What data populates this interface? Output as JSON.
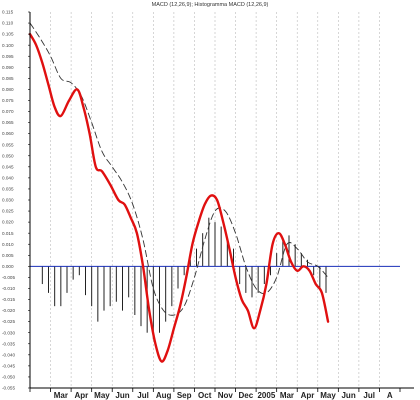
{
  "chart_data": {
    "type": "line",
    "title": "MACD (12,26,9); Histogramma MACD (12,26,9)",
    "x_axis": {
      "ticks": [
        "Mar",
        "Apr",
        "May",
        "Jun",
        "Jul",
        "Aug",
        "Sep",
        "Oct",
        "Nov",
        "Dec",
        "2005",
        "Mar",
        "Apr",
        "May",
        "Jun",
        "Jul",
        "A"
      ],
      "tick_index": [
        1.5,
        2.5,
        3.5,
        4.5,
        5.5,
        6.5,
        7.5,
        8.5,
        9.5,
        10.5,
        11.5,
        12.5,
        13.5,
        14.5,
        15.5,
        16.5,
        17.5
      ],
      "xlim": [
        0,
        18
      ]
    },
    "y_axis": {
      "ylim": [
        -0.055,
        0.115
      ],
      "ticks": [
        "0.115",
        "0.110",
        "0.105",
        "0.100",
        "0.095",
        "0.090",
        "0.085",
        "0.080",
        "0.075",
        "0.070",
        "0.065",
        "0.060",
        "0.055",
        "0.050",
        "0.045",
        "0.040",
        "0.035",
        "0.030",
        "0.025",
        "0.020",
        "0.015",
        "0.010",
        "0.005",
        "0.000",
        "-0.005",
        "-0.010",
        "-0.015",
        "-0.020",
        "-0.025",
        "-0.030",
        "-0.035",
        "-0.040",
        "-0.045",
        "-0.050",
        "-0.055"
      ],
      "tick_values": [
        0.115,
        0.11,
        0.105,
        0.1,
        0.095,
        0.09,
        0.085,
        0.08,
        0.075,
        0.07,
        0.065,
        0.06,
        0.055,
        0.05,
        0.045,
        0.04,
        0.035,
        0.03,
        0.025,
        0.02,
        0.015,
        0.01,
        0.005,
        0.0,
        -0.005,
        -0.01,
        -0.015,
        -0.02,
        -0.025,
        -0.03,
        -0.035,
        -0.04,
        -0.045,
        -0.05,
        -0.055
      ]
    },
    "grid": "vertical dotted",
    "zero_line": 0.0,
    "colors": {
      "macd": "#e01010",
      "signal": "#333333",
      "histogram": "#222222",
      "zero": "#1a2fb8",
      "grid": "#bbbbbb"
    },
    "series": [
      {
        "role": "macd",
        "x": [
          0,
          0.3,
          0.6,
          0.9,
          1.2,
          1.5,
          1.9,
          2.3,
          2.6,
          2.9,
          3.2,
          3.5,
          3.9,
          4.3,
          4.6,
          4.9,
          5.2,
          5.5,
          5.8,
          6.1,
          6.4,
          6.7,
          7.0,
          7.3,
          7.6,
          7.9,
          8.2,
          8.5,
          8.8,
          9.1,
          9.4,
          9.7,
          10.0,
          10.3,
          10.6,
          10.9,
          11.2,
          11.5,
          11.8,
          12.1,
          12.4,
          12.7,
          13.0,
          13.3,
          13.6,
          13.9,
          14.2,
          14.5
        ],
        "y": [
          0.105,
          0.1,
          0.092,
          0.082,
          0.072,
          0.068,
          0.075,
          0.08,
          0.072,
          0.06,
          0.045,
          0.043,
          0.037,
          0.03,
          0.028,
          0.022,
          0.015,
          0.0,
          -0.02,
          -0.035,
          -0.043,
          -0.038,
          -0.028,
          -0.018,
          -0.005,
          0.01,
          0.02,
          0.028,
          0.032,
          0.03,
          0.02,
          0.008,
          -0.005,
          -0.015,
          -0.02,
          -0.028,
          -0.02,
          -0.008,
          0.01,
          0.015,
          0.01,
          0.002,
          -0.002,
          0.0,
          -0.002,
          -0.008,
          -0.012,
          -0.025
        ]
      },
      {
        "role": "signal",
        "x": [
          0,
          0.5,
          1.0,
          1.5,
          2.0,
          2.5,
          3.0,
          3.5,
          4.0,
          4.5,
          5.0,
          5.5,
          6.0,
          6.5,
          7.0,
          7.5,
          8.0,
          8.5,
          9.0,
          9.5,
          10.0,
          10.5,
          11.0,
          11.5,
          12.0,
          12.5,
          13.0,
          13.5,
          14.0,
          14.5
        ],
        "y": [
          0.11,
          0.103,
          0.095,
          0.085,
          0.083,
          0.077,
          0.065,
          0.052,
          0.045,
          0.038,
          0.028,
          0.012,
          -0.01,
          -0.02,
          -0.022,
          -0.018,
          -0.005,
          0.012,
          0.025,
          0.025,
          0.015,
          0.0,
          -0.01,
          -0.012,
          -0.005,
          0.01,
          0.008,
          0.002,
          0.0,
          -0.005
        ]
      },
      {
        "role": "histogram",
        "x": [
          0.6,
          0.9,
          1.2,
          1.5,
          1.8,
          2.1,
          2.4,
          2.7,
          3.0,
          3.3,
          3.6,
          3.9,
          4.2,
          4.5,
          4.8,
          5.1,
          5.4,
          5.7,
          6.0,
          6.3,
          6.6,
          6.9,
          7.2,
          7.5,
          7.8,
          8.1,
          8.4,
          8.7,
          9.0,
          9.3,
          9.6,
          9.9,
          10.2,
          10.5,
          10.8,
          11.1,
          11.4,
          11.7,
          12.0,
          12.3,
          12.6,
          12.9,
          13.2,
          13.5,
          13.8,
          14.1,
          14.4
        ],
        "y": [
          -0.008,
          -0.012,
          -0.018,
          -0.018,
          -0.012,
          -0.006,
          -0.004,
          -0.013,
          -0.018,
          -0.025,
          -0.02,
          -0.018,
          -0.016,
          -0.02,
          -0.014,
          -0.022,
          -0.027,
          -0.03,
          -0.033,
          -0.03,
          -0.025,
          -0.018,
          -0.01,
          -0.004,
          0.003,
          0.008,
          0.015,
          0.022,
          0.02,
          0.018,
          0.012,
          0.008,
          -0.008,
          -0.012,
          -0.014,
          -0.012,
          -0.008,
          -0.004,
          0.006,
          0.012,
          0.014,
          0.01,
          0.006,
          0.003,
          -0.004,
          -0.01,
          -0.012
        ]
      }
    ]
  }
}
